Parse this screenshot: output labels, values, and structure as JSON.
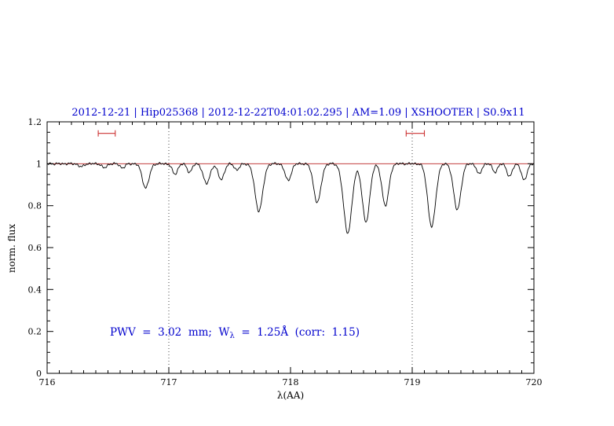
{
  "title": "2012-12-21 | Hip025368 | 2012-12-22T04:01:02.295 | AM=1.09 | XSHOOTER | S0.9x11",
  "title_color": "#0000cd",
  "annotation": {
    "pre": "PWV  =  3.02  mm;  W",
    "sub": "λ",
    "post": "  =  1.25Å  (corr:  1.15)",
    "color": "#0000cd"
  },
  "chart_data": {
    "type": "line",
    "title": "2012-12-21 | Hip025368 | 2012-12-22T04:01:02.295 | AM=1.09 | XSHOOTER | S0.9x11",
    "xlabel": "λ(AA)",
    "ylabel": "norm. flux",
    "xlim": [
      716,
      720
    ],
    "ylim": [
      0,
      1.2
    ],
    "xticks": [
      716,
      717,
      718,
      719,
      720
    ],
    "x_minor_step": 0.1,
    "yticks": [
      0,
      0.2,
      0.4,
      0.6,
      0.8,
      1,
      1.2
    ],
    "ytick_labels": [
      "0",
      "0.2",
      "0.4",
      "0.6",
      "0.8",
      "1",
      "1.2"
    ],
    "y_minor_step": 0.05,
    "grid": "off",
    "dotted_vlines": [
      717,
      719
    ],
    "continuum": {
      "y": 1.0,
      "color": "#bb2222"
    },
    "spectrum_color": "#000000",
    "sample_step": 0.005,
    "noise_amplitude": 0.007,
    "absorption_lines": [
      {
        "center": 716.28,
        "depth": 0.015,
        "sigma": 0.02
      },
      {
        "center": 716.47,
        "depth": 0.02,
        "sigma": 0.02
      },
      {
        "center": 716.62,
        "depth": 0.02,
        "sigma": 0.02
      },
      {
        "center": 716.81,
        "depth": 0.115,
        "sigma": 0.028
      },
      {
        "center": 717.05,
        "depth": 0.05,
        "sigma": 0.022
      },
      {
        "center": 717.17,
        "depth": 0.04,
        "sigma": 0.02
      },
      {
        "center": 717.31,
        "depth": 0.095,
        "sigma": 0.027
      },
      {
        "center": 717.43,
        "depth": 0.075,
        "sigma": 0.025
      },
      {
        "center": 717.56,
        "depth": 0.03,
        "sigma": 0.02
      },
      {
        "center": 717.74,
        "depth": 0.225,
        "sigma": 0.032
      },
      {
        "center": 717.98,
        "depth": 0.08,
        "sigma": 0.025
      },
      {
        "center": 718.22,
        "depth": 0.185,
        "sigma": 0.03
      },
      {
        "center": 718.47,
        "depth": 0.33,
        "sigma": 0.034
      },
      {
        "center": 718.62,
        "depth": 0.28,
        "sigma": 0.03
      },
      {
        "center": 718.78,
        "depth": 0.2,
        "sigma": 0.028
      },
      {
        "center": 719.16,
        "depth": 0.3,
        "sigma": 0.032
      },
      {
        "center": 719.37,
        "depth": 0.22,
        "sigma": 0.03
      },
      {
        "center": 719.55,
        "depth": 0.05,
        "sigma": 0.02
      },
      {
        "center": 719.68,
        "depth": 0.04,
        "sigma": 0.02
      },
      {
        "center": 719.8,
        "depth": 0.06,
        "sigma": 0.022
      },
      {
        "center": 719.92,
        "depth": 0.08,
        "sigma": 0.022
      }
    ],
    "range_markers": [
      {
        "x1": 716.42,
        "x2": 716.56,
        "y": 1.145
      },
      {
        "x1": 718.95,
        "x2": 719.1,
        "y": 1.145
      }
    ],
    "marker_color": "#cc3333"
  }
}
